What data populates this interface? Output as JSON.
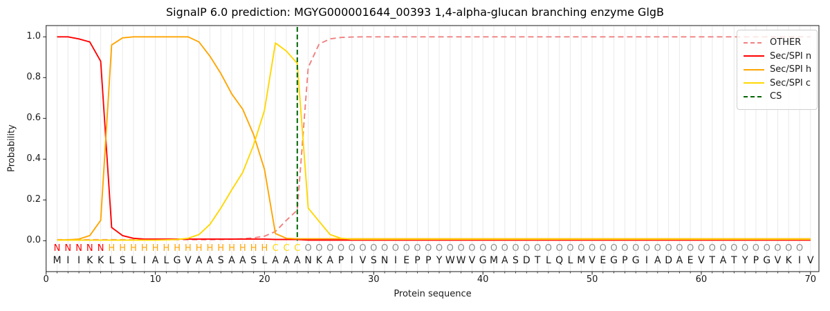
{
  "title": "SignalP 6.0 prediction: MGYG000001644_00393 1,4-alpha-glucan branching enzyme GlgB",
  "legend": [
    {
      "label": "OTHER",
      "color": "#f08080",
      "dashed": true
    },
    {
      "label": "Sec/SPI n",
      "color": "#ff0000",
      "dashed": false
    },
    {
      "label": "Sec/SPI h",
      "color": "#ffa500",
      "dashed": false
    },
    {
      "label": "Sec/SPI c",
      "color": "#ffd700",
      "dashed": false
    },
    {
      "label": "CS",
      "color": "#006400",
      "dashed": true
    }
  ],
  "chart_data": {
    "type": "line",
    "title": "SignalP 6.0 prediction: MGYG000001644_00393 1,4-alpha-glucan branching enzyme GlgB",
    "xlabel": "Protein sequence",
    "ylabel": "Probability",
    "xlim": [
      0,
      70.76
    ],
    "ylim": [
      -0.152,
      1.055
    ],
    "grid": "vertical-per-residue",
    "legend_position": "upper right",
    "xticks": [
      "0",
      "10",
      "20",
      "30",
      "40",
      "50",
      "60",
      "70"
    ],
    "xtick_values": [
      0,
      10,
      20,
      30,
      40,
      50,
      60,
      70
    ],
    "yticks": [
      "0.0",
      "0.2",
      "0.4",
      "0.6",
      "0.8",
      "1.0"
    ],
    "ytick_values": [
      0.0,
      0.2,
      0.4,
      0.6,
      0.8,
      1.0
    ],
    "residues": "MIIKKLSLIALGVAASAASLAAANKAPIVSNIEPPYWWVGMASDTLQLMVEGPGIADAEVTATYPGVKIV",
    "region_labels": "NNNNNHHHHHHHHHHHHHHHCCCOOOOOOOOOOOOOOOOOOOOOOOOOOOOOOOOOOOOOOOOOOOOOO",
    "label_colors": {
      "N": "#ff0000",
      "H": "#ffa500",
      "C": "#ffd700",
      "O": "#8c8c8c"
    },
    "cs_line": {
      "name": "CS",
      "position": 23,
      "color": "#006400",
      "style": "dashed"
    },
    "series": [
      {
        "name": "OTHER",
        "color": "#f08080",
        "style": "dashed",
        "values": [
          0.005,
          0.005,
          0.005,
          0.005,
          0.005,
          0.005,
          0.005,
          0.005,
          0.005,
          0.005,
          0.005,
          0.005,
          0.005,
          0.005,
          0.005,
          0.006,
          0.007,
          0.01,
          0.014,
          0.022,
          0.045,
          0.1,
          0.15,
          0.85,
          0.965,
          0.99,
          0.997,
          0.999,
          1.0,
          1.0,
          1.0,
          1.0,
          1.0,
          1.0,
          1.0,
          1.0,
          1.0,
          1.0,
          1.0,
          1.0,
          1.0,
          1.0,
          1.0,
          1.0,
          1.0,
          1.0,
          1.0,
          1.0,
          1.0,
          1.0,
          1.0,
          1.0,
          1.0,
          1.0,
          1.0,
          1.0,
          1.0,
          1.0,
          1.0,
          1.0,
          1.0,
          1.0,
          1.0,
          1.0,
          1.0,
          1.0,
          1.0,
          1.0,
          1.0,
          1.0
        ]
      },
      {
        "name": "Sec/SPI n",
        "color": "#ff0000",
        "style": "solid",
        "values": [
          1.0,
          1.0,
          0.99,
          0.975,
          0.88,
          0.065,
          0.025,
          0.012,
          0.008,
          0.008,
          0.008,
          0.008,
          0.008,
          0.008,
          0.008,
          0.008,
          0.008,
          0.008,
          0.008,
          0.008,
          0.006,
          0.006,
          0.006,
          0.003,
          0.003,
          0.003,
          0.003,
          0.003,
          0.003,
          0.003,
          0.003,
          0.003,
          0.003,
          0.003,
          0.003,
          0.003,
          0.003,
          0.003,
          0.003,
          0.003,
          0.003,
          0.003,
          0.003,
          0.003,
          0.003,
          0.003,
          0.003,
          0.003,
          0.003,
          0.003,
          0.003,
          0.003,
          0.003,
          0.003,
          0.003,
          0.003,
          0.003,
          0.003,
          0.003,
          0.003,
          0.003,
          0.003,
          0.003,
          0.003,
          0.003,
          0.003,
          0.003,
          0.003,
          0.003,
          0.003
        ]
      },
      {
        "name": "Sec/SPI h",
        "color": "#ffa500",
        "style": "solid",
        "values": [
          0.004,
          0.004,
          0.008,
          0.025,
          0.1,
          0.96,
          0.995,
          1.0,
          1.0,
          1.0,
          1.0,
          1.0,
          1.0,
          0.975,
          0.905,
          0.82,
          0.72,
          0.645,
          0.52,
          0.35,
          0.035,
          0.012,
          0.009,
          0.009,
          0.009,
          0.009,
          0.009,
          0.009,
          0.009,
          0.009,
          0.009,
          0.009,
          0.009,
          0.009,
          0.009,
          0.009,
          0.009,
          0.009,
          0.009,
          0.009,
          0.009,
          0.009,
          0.009,
          0.009,
          0.009,
          0.009,
          0.009,
          0.009,
          0.009,
          0.009,
          0.009,
          0.009,
          0.009,
          0.009,
          0.009,
          0.009,
          0.009,
          0.009,
          0.009,
          0.009,
          0.009,
          0.009,
          0.009,
          0.009,
          0.009,
          0.009,
          0.009,
          0.009,
          0.009,
          0.009
        ]
      },
      {
        "name": "Sec/SPI c",
        "color": "#ffd700",
        "style": "solid",
        "values": [
          0.003,
          0.003,
          0.003,
          0.003,
          0.003,
          0.003,
          0.003,
          0.003,
          0.003,
          0.003,
          0.004,
          0.006,
          0.012,
          0.03,
          0.08,
          0.16,
          0.25,
          0.335,
          0.47,
          0.64,
          0.97,
          0.93,
          0.87,
          0.16,
          0.095,
          0.03,
          0.012,
          0.007,
          0.007,
          0.007,
          0.007,
          0.007,
          0.007,
          0.007,
          0.007,
          0.007,
          0.007,
          0.007,
          0.007,
          0.007,
          0.007,
          0.007,
          0.007,
          0.007,
          0.007,
          0.007,
          0.007,
          0.007,
          0.007,
          0.007,
          0.007,
          0.007,
          0.007,
          0.007,
          0.007,
          0.007,
          0.007,
          0.007,
          0.007,
          0.007,
          0.007,
          0.007,
          0.007,
          0.007,
          0.007,
          0.007,
          0.007,
          0.007,
          0.007,
          0.007
        ]
      }
    ]
  }
}
